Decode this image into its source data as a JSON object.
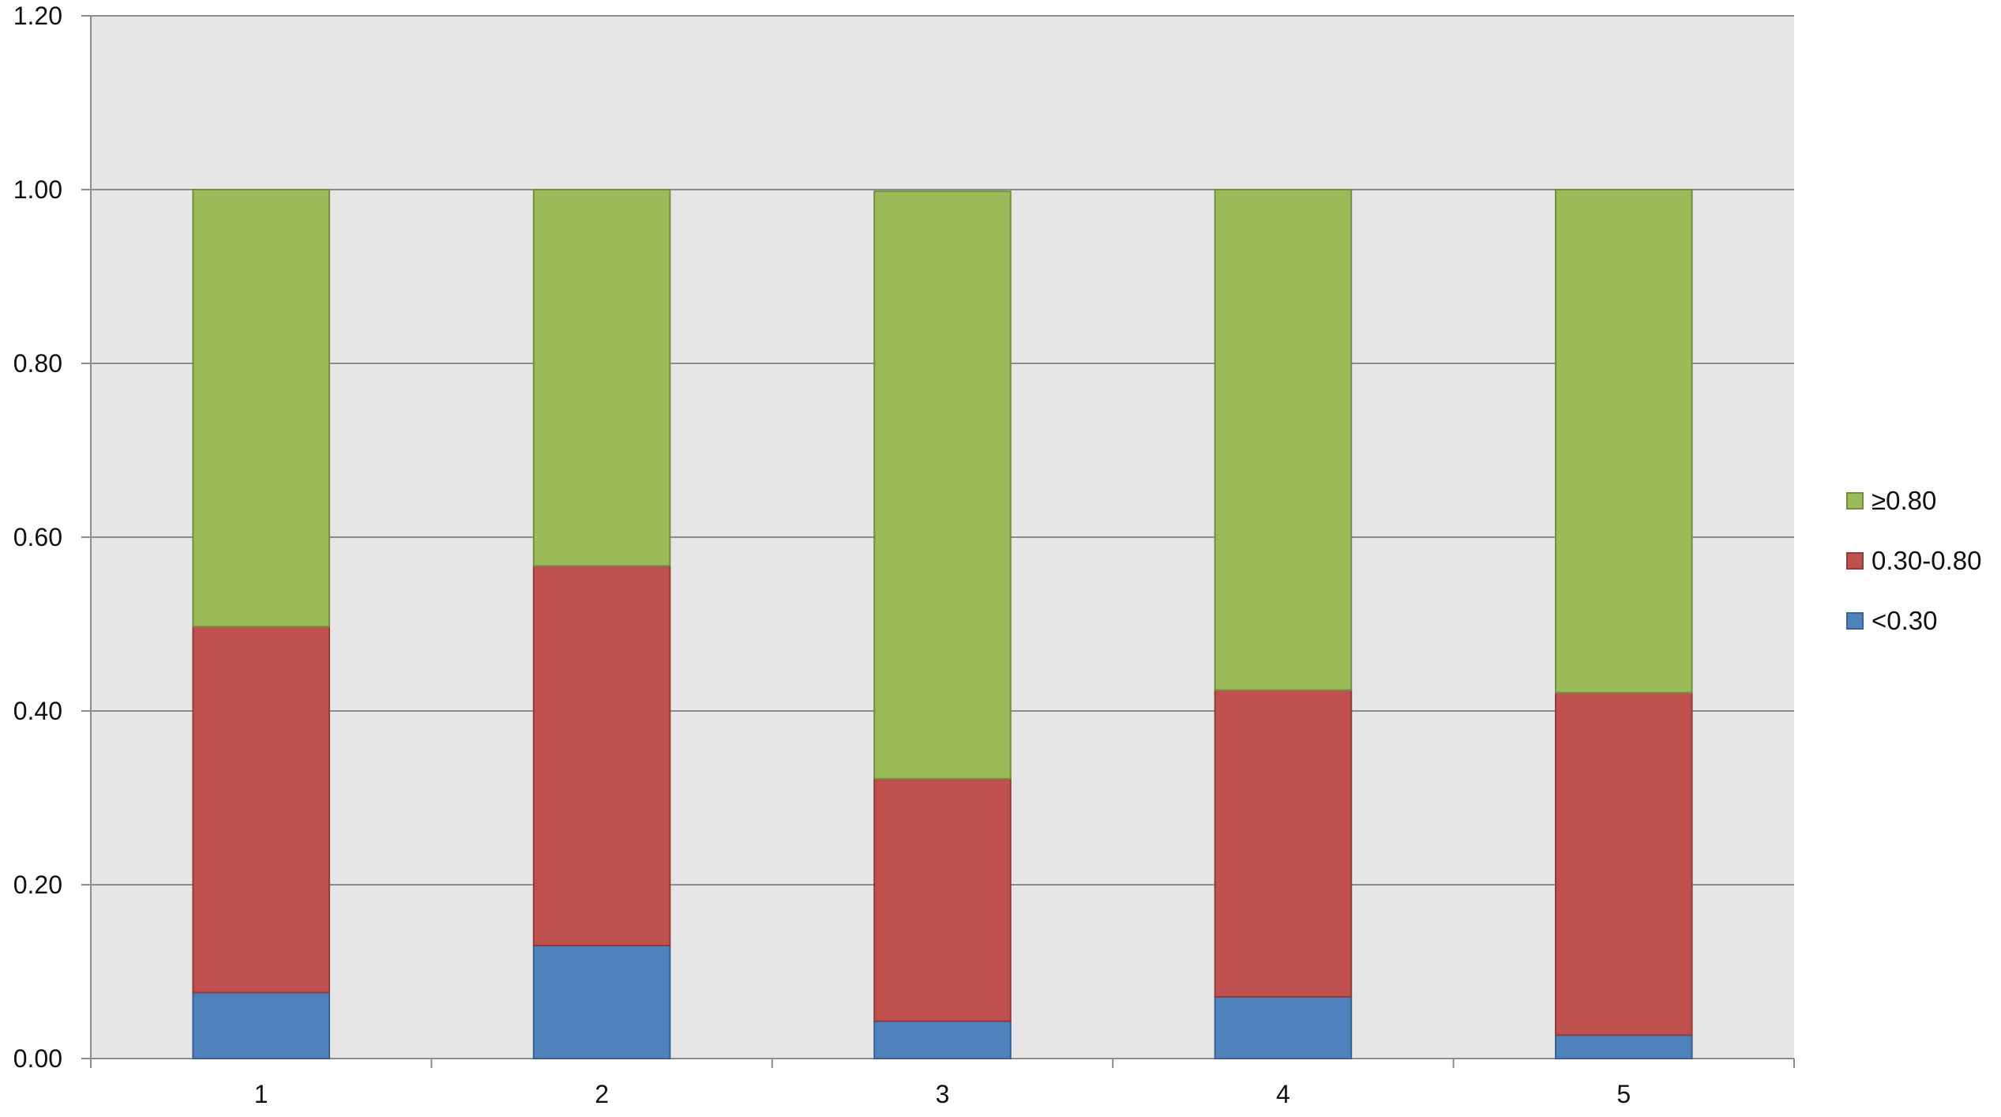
{
  "chart_data": {
    "type": "bar",
    "stacked": true,
    "categories": [
      "1",
      "2",
      "3",
      "4",
      "5"
    ],
    "series": [
      {
        "name": "<0.30",
        "color": "#4f81bd",
        "values": [
          0.076,
          0.13,
          0.043,
          0.071,
          0.027
        ]
      },
      {
        "name": "0.30-0.80",
        "color": "#c0504d",
        "values": [
          0.421,
          0.437,
          0.279,
          0.353,
          0.394
        ]
      },
      {
        "name": "≥0.80",
        "color": "#9bbb59",
        "values": [
          0.503,
          0.433,
          0.676,
          0.576,
          0.579
        ]
      }
    ],
    "ylim": [
      0,
      1.2
    ],
    "yticks": [
      "0.00",
      "0.20",
      "0.40",
      "0.60",
      "0.80",
      "1.00",
      "1.20"
    ],
    "grid": true,
    "legend_position": "right",
    "plot_background": "#e6e6e6"
  },
  "legend": {
    "items": [
      {
        "label": "≥0.80",
        "color": "#9bbb59"
      },
      {
        "label": "0.30-0.80",
        "color": "#c0504d"
      },
      {
        "label": "<0.30",
        "color": "#4f81bd"
      }
    ]
  }
}
